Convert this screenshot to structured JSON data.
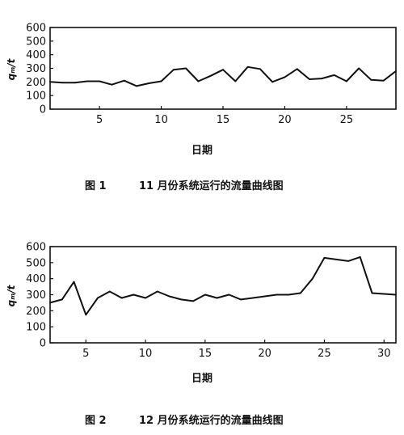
{
  "figures": [
    {
      "caption_num": "图 1",
      "caption_text": "11 月份系统运行的流量曲线图"
    },
    {
      "caption_num": "图 2",
      "caption_text": "12 月份系统运行的流量曲线图"
    }
  ],
  "chart_data": [
    {
      "type": "line",
      "ylabel": "qₘ/t",
      "xlabel": "日期",
      "ylim": [
        0,
        600
      ],
      "xlim": [
        1,
        29
      ],
      "yticks": [
        0,
        100,
        200,
        300,
        400,
        500,
        600
      ],
      "xticks": [
        5,
        10,
        15,
        20,
        25
      ],
      "grid": false,
      "series": [
        {
          "x": [
            1,
            2,
            3,
            4,
            5,
            6,
            7,
            8,
            9,
            10,
            11,
            12,
            13,
            14,
            15,
            16,
            17,
            18,
            19,
            20,
            21,
            22,
            23,
            24,
            25,
            26,
            27,
            28,
            29
          ],
          "values": [
            200,
            195,
            195,
            205,
            205,
            180,
            210,
            170,
            190,
            205,
            290,
            300,
            205,
            245,
            290,
            205,
            310,
            295,
            200,
            235,
            295,
            220,
            225,
            250,
            205,
            300,
            215,
            210,
            280
          ]
        }
      ]
    },
    {
      "type": "line",
      "ylabel": "qₘ/t",
      "xlabel": "日期",
      "ylim": [
        0,
        600
      ],
      "xlim": [
        2,
        31
      ],
      "yticks": [
        0,
        100,
        200,
        300,
        400,
        500,
        600
      ],
      "xticks": [
        5,
        10,
        15,
        20,
        25,
        30
      ],
      "grid": false,
      "series": [
        {
          "x": [
            2,
            3,
            4,
            5,
            6,
            7,
            8,
            9,
            10,
            11,
            12,
            13,
            14,
            15,
            16,
            17,
            18,
            19,
            20,
            21,
            22,
            23,
            24,
            25,
            26,
            27,
            28,
            29,
            30,
            31
          ],
          "values": [
            250,
            270,
            380,
            175,
            280,
            320,
            280,
            300,
            280,
            320,
            290,
            270,
            260,
            300,
            280,
            300,
            270,
            280,
            290,
            300,
            300,
            310,
            400,
            530,
            520,
            510,
            535,
            310,
            305,
            300
          ]
        }
      ]
    }
  ]
}
